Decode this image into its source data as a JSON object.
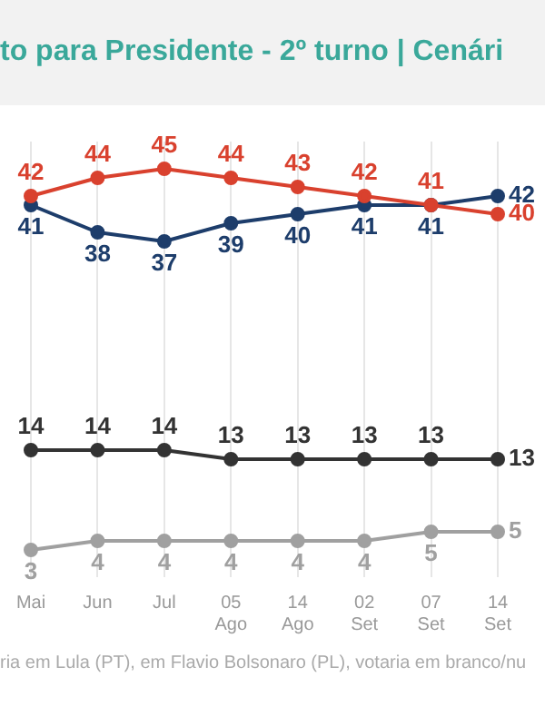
{
  "chart_data": {
    "type": "line",
    "title": "to para Presidente - 2º turno | Cenári",
    "categories": [
      "Mai",
      "Jun",
      "Jul",
      "05 Ago",
      "14 Ago",
      "02 Set",
      "07 Set",
      "14 Set"
    ],
    "series": [
      {
        "color": "#d9412e",
        "values": [
          42,
          44,
          45,
          44,
          43,
          42,
          41,
          40
        ]
      },
      {
        "color": "#1d3d6b",
        "values": [
          41,
          38,
          37,
          39,
          40,
          41,
          41,
          42
        ]
      },
      {
        "color": "#333333",
        "values": [
          14,
          14,
          14,
          13,
          13,
          13,
          13,
          13
        ]
      },
      {
        "color": "#a0a0a0",
        "values": [
          3,
          4,
          4,
          4,
          4,
          4,
          5,
          5
        ]
      }
    ],
    "ylim": [
      0,
      48
    ],
    "grid": "x",
    "legend": false,
    "marker": "circle",
    "line_style": "solid",
    "data_labels": true,
    "annotations": [
      "ria em Lula (PT), em Flavio Bolsonaro (PL), votaria em branco/nu"
    ]
  }
}
